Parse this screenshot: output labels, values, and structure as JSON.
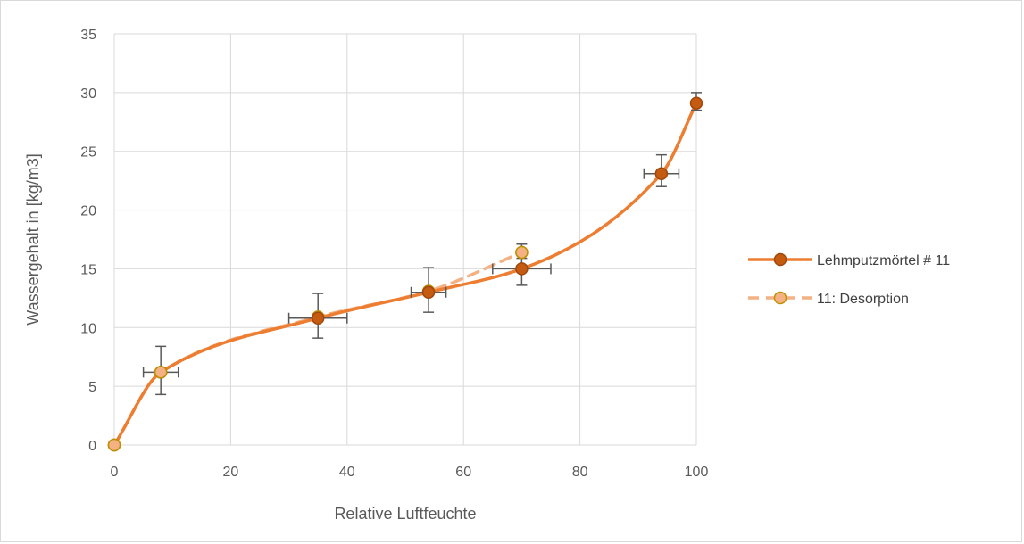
{
  "chart_data": {
    "type": "scatter",
    "xlabel": "Relative Luftfeuchte",
    "ylabel": "Wassergehalt in [kg/m3]",
    "xlim": [
      0,
      100
    ],
    "ylim": [
      0,
      35
    ],
    "x_ticks": [
      0,
      20,
      40,
      60,
      80,
      100
    ],
    "y_ticks": [
      0,
      5,
      10,
      15,
      20,
      25,
      30,
      35
    ],
    "grid": true,
    "legend_position": "right",
    "series": [
      {
        "name": "Lehmputzmörtel # 11",
        "line_style": "solid",
        "smooth": true,
        "line_color": "#ED7D31",
        "marker_fill": "#C55A11",
        "marker_edge": "#9E480E",
        "points": [
          {
            "x": 0,
            "y": 0
          },
          {
            "x": 8,
            "y": 6.2,
            "xerr": 3,
            "yerr_low": 1.9,
            "yerr_high": 2.2
          },
          {
            "x": 35,
            "y": 10.8,
            "xerr": 5,
            "yerr_low": 1.7,
            "yerr_high": 2.1
          },
          {
            "x": 54,
            "y": 13.0,
            "xerr": 3,
            "yerr_low": 1.7,
            "yerr_high": 2.1
          },
          {
            "x": 70,
            "y": 15.0,
            "xerr": 5,
            "yerr_low": 1.4,
            "yerr_high": 1.4
          },
          {
            "x": 94,
            "y": 23.1,
            "xerr": 3,
            "yerr_low": 1.1,
            "yerr_high": 1.6
          },
          {
            "x": 100,
            "y": 29.1,
            "xerr": 0,
            "yerr_low": 0.6,
            "yerr_high": 0.9
          }
        ]
      },
      {
        "name": "11: Desorption",
        "line_style": "dashed",
        "smooth": true,
        "line_color": "#F4B183",
        "marker_fill": "#F4B183",
        "marker_edge": "#BF9000",
        "points": [
          {
            "x": 0,
            "y": 0
          },
          {
            "x": 8,
            "y": 6.2
          },
          {
            "x": 35,
            "y": 10.9
          },
          {
            "x": 54,
            "y": 13.1
          },
          {
            "x": 70,
            "y": 16.4,
            "xerr": 0,
            "yerr_low": 0.5,
            "yerr_high": 0.7
          }
        ]
      }
    ]
  }
}
